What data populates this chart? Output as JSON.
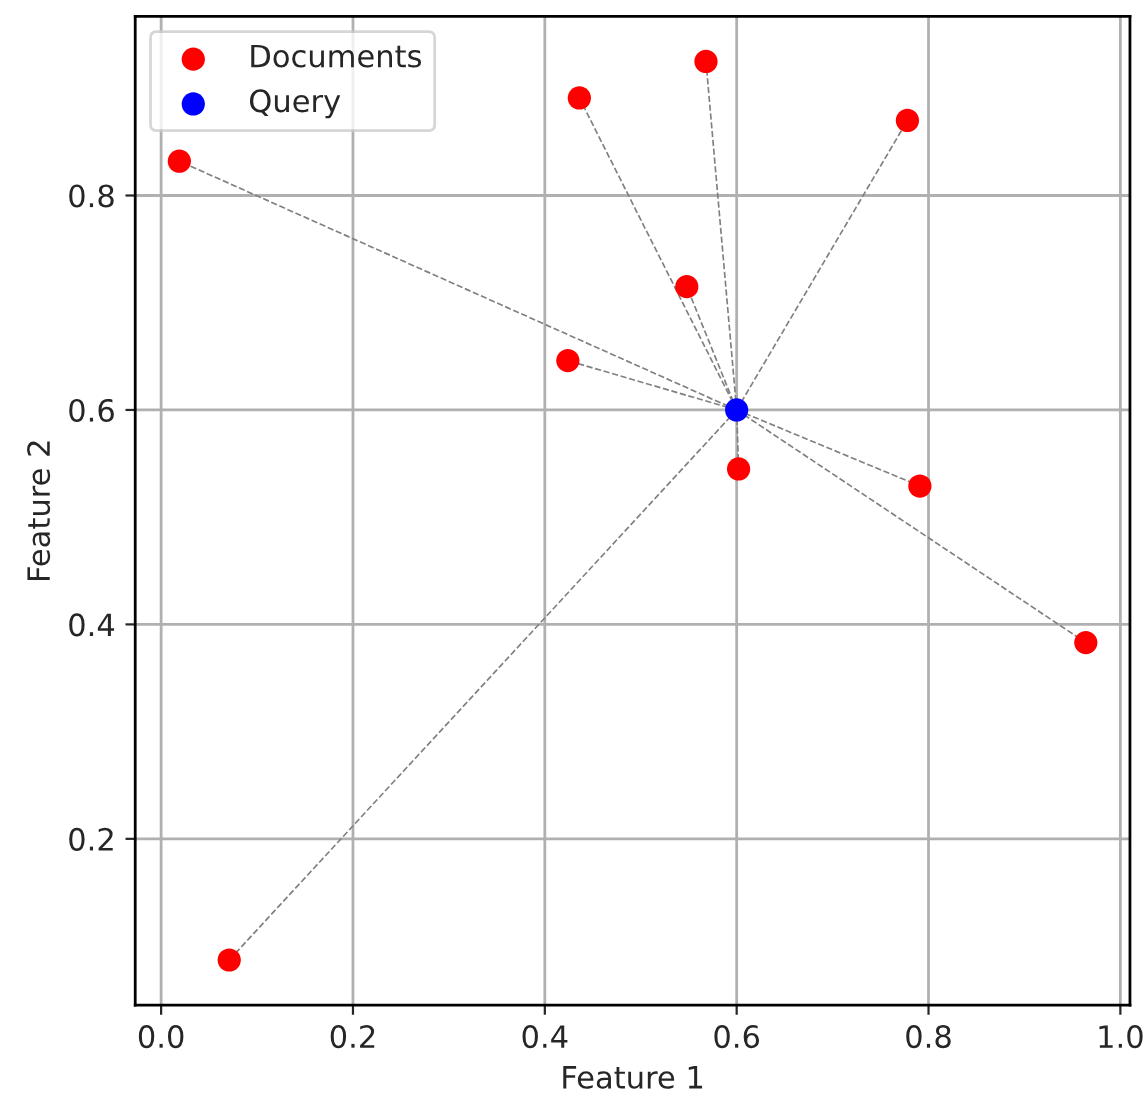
{
  "chart_data": {
    "type": "scatter",
    "xlabel": "Feature 1",
    "ylabel": "Feature 2",
    "xlim": [
      -0.027,
      1.01
    ],
    "ylim": [
      0.045,
      0.967
    ],
    "xticks": [
      {
        "value": 0.0,
        "label": "0.0"
      },
      0.2,
      0.4,
      0.6,
      0.8,
      {
        "value": 1.0,
        "label": "1.0"
      }
    ],
    "yticks": [
      0.2,
      0.4,
      0.6,
      0.8
    ],
    "grid": true,
    "legend": "top left",
    "series": [
      {
        "type": "line",
        "line_style": "dashed",
        "color": "#808080",
        "x": [
          0.6,
          0.019
        ],
        "values": [
          0.6,
          0.832
        ]
      },
      {
        "type": "line",
        "line_style": "dashed",
        "color": "#808080",
        "x": [
          0.6,
          0.436
        ],
        "values": [
          0.6,
          0.891
        ]
      },
      {
        "type": "line",
        "line_style": "dashed",
        "color": "#808080",
        "x": [
          0.6,
          0.568
        ],
        "values": [
          0.6,
          0.925
        ]
      },
      {
        "type": "line",
        "line_style": "dashed",
        "color": "#808080",
        "x": [
          0.6,
          0.778
        ],
        "values": [
          0.6,
          0.87
        ]
      },
      {
        "type": "line",
        "line_style": "dashed",
        "color": "#808080",
        "x": [
          0.6,
          0.548
        ],
        "values": [
          0.6,
          0.715
        ]
      },
      {
        "type": "line",
        "line_style": "dashed",
        "color": "#808080",
        "x": [
          0.6,
          0.424
        ],
        "values": [
          0.6,
          0.646
        ]
      },
      {
        "type": "line",
        "line_style": "dashed",
        "color": "#808080",
        "x": [
          0.6,
          0.602
        ],
        "values": [
          0.6,
          0.545
        ]
      },
      {
        "type": "line",
        "line_style": "dashed",
        "color": "#808080",
        "x": [
          0.6,
          0.791
        ],
        "values": [
          0.6,
          0.529
        ]
      },
      {
        "type": "line",
        "line_style": "dashed",
        "color": "#808080",
        "x": [
          0.6,
          0.071
        ],
        "values": [
          0.6,
          0.087
        ]
      },
      {
        "type": "line",
        "line_style": "dashed",
        "color": "#808080",
        "x": [
          0.6,
          0.964
        ],
        "values": [
          0.6,
          0.383
        ]
      },
      {
        "name": "Documents",
        "color": "#ff0000",
        "marker": "circle",
        "x": [
          0.019,
          0.436,
          0.568,
          0.778,
          0.548,
          0.424,
          0.602,
          0.791,
          0.071,
          0.964
        ],
        "values": [
          0.832,
          0.891,
          0.925,
          0.87,
          0.715,
          0.646,
          0.545,
          0.529,
          0.087,
          0.383
        ]
      },
      {
        "name": "Query",
        "color": "#0000ff",
        "marker": "circle",
        "x": [
          0.6
        ],
        "values": [
          0.6
        ]
      }
    ]
  }
}
